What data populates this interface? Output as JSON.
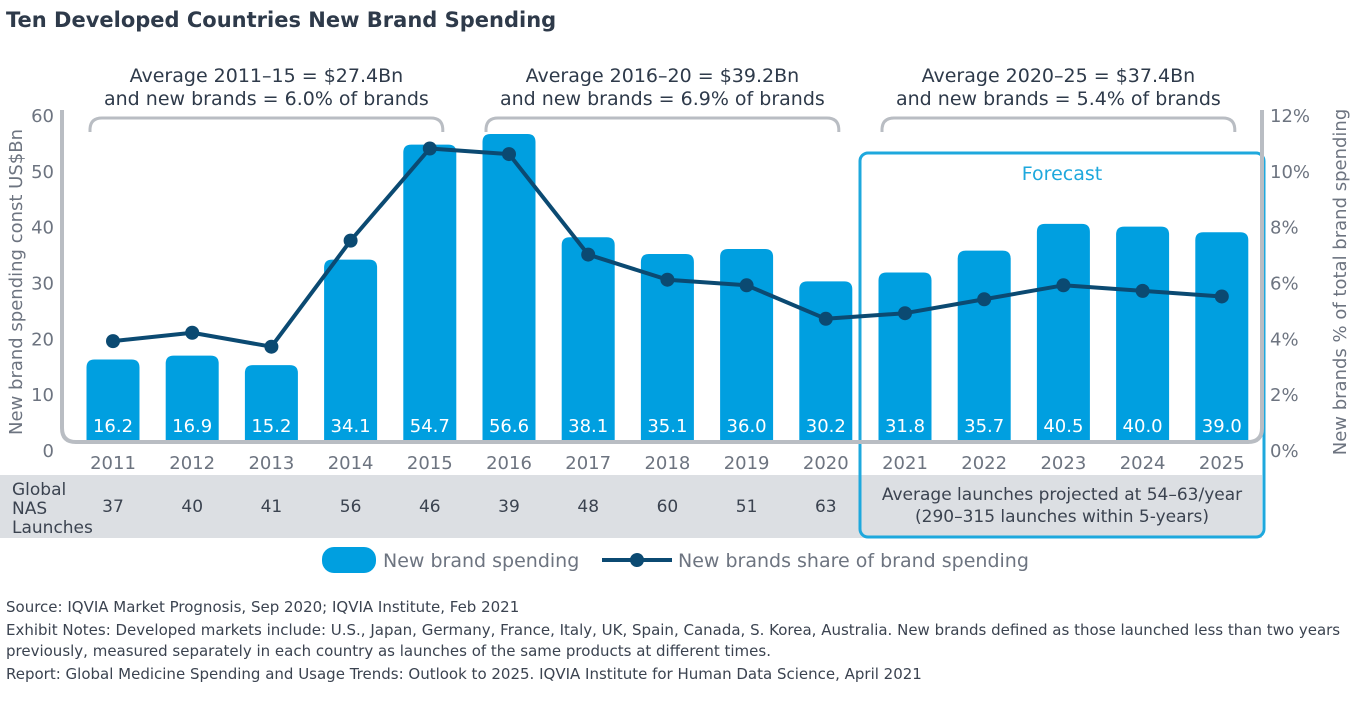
{
  "title": "Ten Developed Countries New Brand Spending",
  "chart_data": {
    "type": "bar+line",
    "title": "Ten Developed Countries New Brand Spending",
    "categories": [
      "2011",
      "2012",
      "2013",
      "2014",
      "2015",
      "2016",
      "2017",
      "2018",
      "2019",
      "2020",
      "2021",
      "2022",
      "2023",
      "2024",
      "2025"
    ],
    "series": [
      {
        "name": "New brand spending",
        "type": "bar",
        "axis": "left",
        "color": "#009fe0",
        "values": [
          16.2,
          16.9,
          15.2,
          34.1,
          54.7,
          56.6,
          38.1,
          35.1,
          36.0,
          30.2,
          31.8,
          35.7,
          40.5,
          40.0,
          39.0
        ]
      },
      {
        "name": "New brands share of brand spending",
        "type": "line",
        "axis": "right",
        "color": "#0b4a72",
        "values": [
          3.9,
          4.2,
          3.7,
          7.5,
          10.8,
          10.6,
          7.0,
          6.1,
          5.9,
          4.7,
          4.9,
          5.4,
          5.9,
          5.7,
          5.5
        ]
      }
    ],
    "ylabel": "New brand spending const US$Bn",
    "ylim": [
      0,
      60
    ],
    "yticks": [
      "0",
      "10",
      "20",
      "30",
      "40",
      "50",
      "60"
    ],
    "y2label": "New brands % of total brand spending",
    "y2lim": [
      0,
      12
    ],
    "y2ticks": [
      "0%",
      "2%",
      "4%",
      "6%",
      "8%",
      "10%",
      "12%"
    ],
    "annotations": [
      {
        "line1": "Average 2011–15 = $27.4Bn",
        "line2": "and new brands = 6.0% of brands",
        "from": "2011",
        "to": "2015"
      },
      {
        "line1": "Average 2016–20 = $39.2Bn",
        "line2": "and new brands = 6.9% of brands",
        "from": "2016",
        "to": "2020"
      },
      {
        "line1": "Average 2020–25 = $37.4Bn",
        "line2": "and new brands = 5.4% of brands",
        "from": "2021",
        "to": "2025"
      }
    ],
    "forecast_label": "Forecast",
    "forecast_from": "2021",
    "table": {
      "row_label": [
        "Global",
        "NAS",
        "Launches"
      ],
      "values": [
        "37",
        "40",
        "41",
        "56",
        "46",
        "39",
        "48",
        "60",
        "51",
        "63"
      ],
      "forecast_text": [
        "Average launches projected at 54–63/year",
        "(290–315 launches within 5-years)"
      ]
    },
    "legend_placement": "bottom-center",
    "grid": false,
    "colors": {
      "bar": "#009fe0",
      "line": "#0b4a72",
      "frame": "#b9bdc3",
      "forecast_box": "#1ea8dd",
      "table_bg": "#dcdfe3"
    }
  },
  "notes": {
    "source": "Source: IQVIA Market Prognosis, Sep 2020; IQVIA Institute, Feb 2021",
    "exhibit": "Exhibit Notes: Developed markets include: U.S., Japan, Germany, France, Italy, UK, Spain, Canada, S. Korea, Australia. New brands defined as those launched less than two years previously, measured separately in each country as launches of the same products at different times.",
    "report": "Report: Global Medicine Spending and Usage Trends: Outlook to 2025. IQVIA Institute for Human Data Science, April 2021"
  }
}
